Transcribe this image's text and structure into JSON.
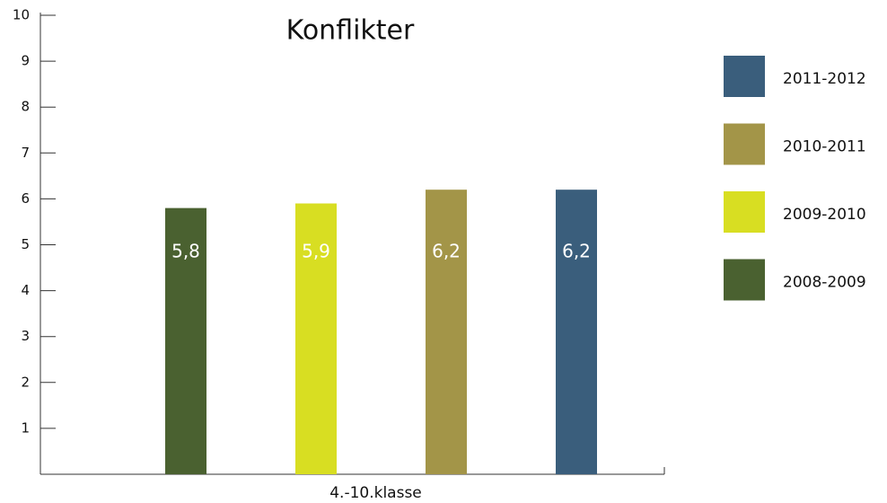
{
  "chart_data": {
    "type": "bar",
    "title": "Konflikter",
    "categories": [
      "4.-10.klasse"
    ],
    "series": [
      {
        "name": "2008-2009",
        "color": "#4a6130",
        "values": [
          5.8
        ],
        "value_labels": [
          "5,8"
        ]
      },
      {
        "name": "2009-2010",
        "color": "#d8de22",
        "values": [
          5.9
        ],
        "value_labels": [
          "5,9"
        ]
      },
      {
        "name": "2010-2011",
        "color": "#a39548",
        "values": [
          6.2
        ],
        "value_labels": [
          "6,2"
        ]
      },
      {
        "name": "2011-2012",
        "color": "#3a5e7c",
        "values": [
          6.2
        ],
        "value_labels": [
          "6,2"
        ]
      }
    ],
    "ylim": [
      0,
      10
    ],
    "yticks": [
      1,
      2,
      3,
      4,
      5,
      6,
      7,
      8,
      9,
      10
    ],
    "legend": "right"
  }
}
